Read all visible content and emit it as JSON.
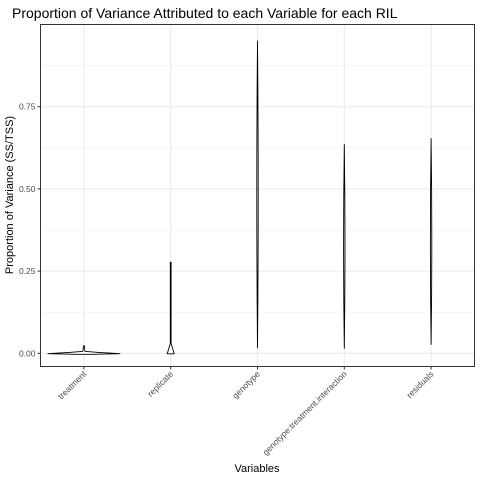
{
  "chart_data": {
    "type": "violin",
    "title": "Proportion of Variance Attributed to each Variable for each RIL",
    "xlabel": "Variables",
    "ylabel": "Proportion of Variance (SS/TSS)",
    "ylim": [
      -0.04,
      1.0
    ],
    "yticks": [
      0.0,
      0.25,
      0.5,
      0.75
    ],
    "ytick_labels": [
      "0.00",
      "0.25",
      "0.50",
      "0.75"
    ],
    "grid": true,
    "legend": "none",
    "categories": [
      "treatment",
      "replicate",
      "genotype",
      "genotype:treatment.interaction",
      "residuals"
    ],
    "series": [
      {
        "category": "treatment",
        "min": 0.0,
        "max": 0.023
      },
      {
        "category": "replicate",
        "min": 0.0,
        "max": 0.277
      },
      {
        "category": "genotype",
        "min": 0.017,
        "max": 0.95
      },
      {
        "category": "genotype:treatment.interaction",
        "min": 0.015,
        "max": 0.635
      },
      {
        "category": "residuals",
        "min": 0.027,
        "max": 0.653
      }
    ]
  }
}
